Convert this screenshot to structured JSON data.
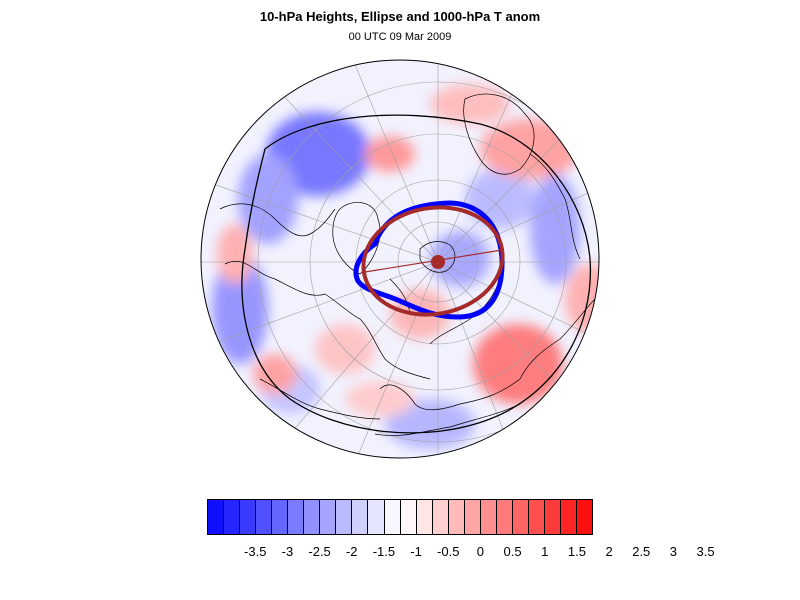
{
  "header": {
    "title": "10-hPa Heights, Ellipse and 1000-hPa T anom",
    "subtitle": "00 UTC 09 Mar 2009"
  },
  "map": {
    "projection": "north-polar-stereographic",
    "colors": {
      "height_contour": "#0000ff",
      "ellipse": "#a52a2a",
      "coastline": "#000000",
      "grid": "#a0a0a0"
    }
  },
  "colorbar": {
    "colors": [
      "#1010ff",
      "#2525ff",
      "#3a3aff",
      "#5050ff",
      "#6565ff",
      "#7a7aff",
      "#9090ff",
      "#a5a5ff",
      "#babaff",
      "#d0d0ff",
      "#e5e5ff",
      "#f7f7ff",
      "#fff7f7",
      "#ffe5e5",
      "#ffd0d0",
      "#ffbaba",
      "#ffa5a5",
      "#ff9090",
      "#ff7a7a",
      "#ff6565",
      "#ff5050",
      "#ff3a3a",
      "#ff2525",
      "#ff1010"
    ],
    "labels": [
      "-3.5",
      "-3",
      "-2.5",
      "-2",
      "-1.5",
      "-1",
      "-0.5",
      "0",
      "0.5",
      "1",
      "1.5",
      "2",
      "2.5",
      "3",
      "3.5"
    ]
  }
}
